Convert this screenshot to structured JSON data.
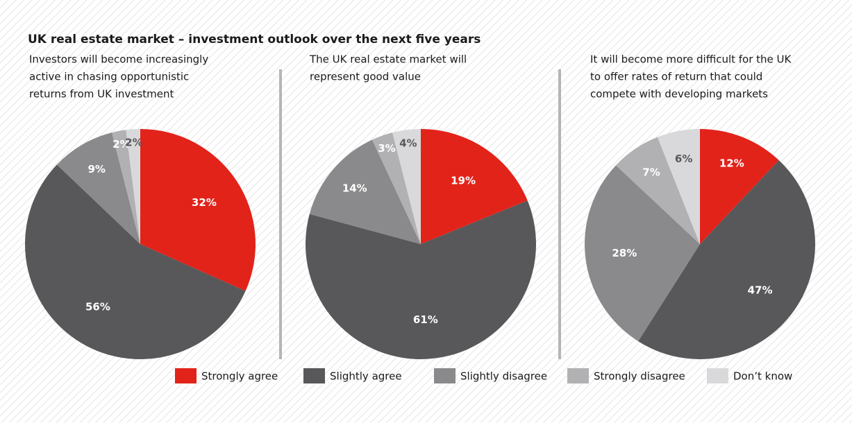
{
  "title": "UK real estate market – investment outlook over the next five years",
  "legend": {
    "categories": [
      "Strongly agree",
      "Slightly agree",
      "Slightly disagree",
      "Strongly disagree",
      "Don’t know"
    ],
    "colors": [
      "#e2231a",
      "#58585a",
      "#8a8a8c",
      "#b1b1b3",
      "#d9d9db"
    ]
  },
  "chart_data": [
    {
      "type": "pie",
      "title": [
        "Investors will become increasingly",
        "active in chasing opportunistic",
        "returns from UK investment"
      ],
      "values": [
        32,
        56,
        9,
        2,
        2
      ],
      "value_labels": [
        "32%",
        "56%",
        "9%",
        "2%",
        "2%"
      ]
    },
    {
      "type": "pie",
      "title": [
        "The UK real estate market will",
        "represent good value"
      ],
      "values": [
        19,
        61,
        14,
        3,
        4
      ],
      "value_labels": [
        "19%",
        "61%",
        "14%",
        "3%",
        "4%"
      ]
    },
    {
      "type": "pie",
      "title": [
        "It will become more difficult for the UK",
        "to offer rates of return that could",
        "compete with developing markets"
      ],
      "values": [
        12,
        47,
        28,
        7,
        6
      ],
      "value_labels": [
        "12%",
        "47%",
        "28%",
        "7%",
        "6%"
      ]
    }
  ]
}
